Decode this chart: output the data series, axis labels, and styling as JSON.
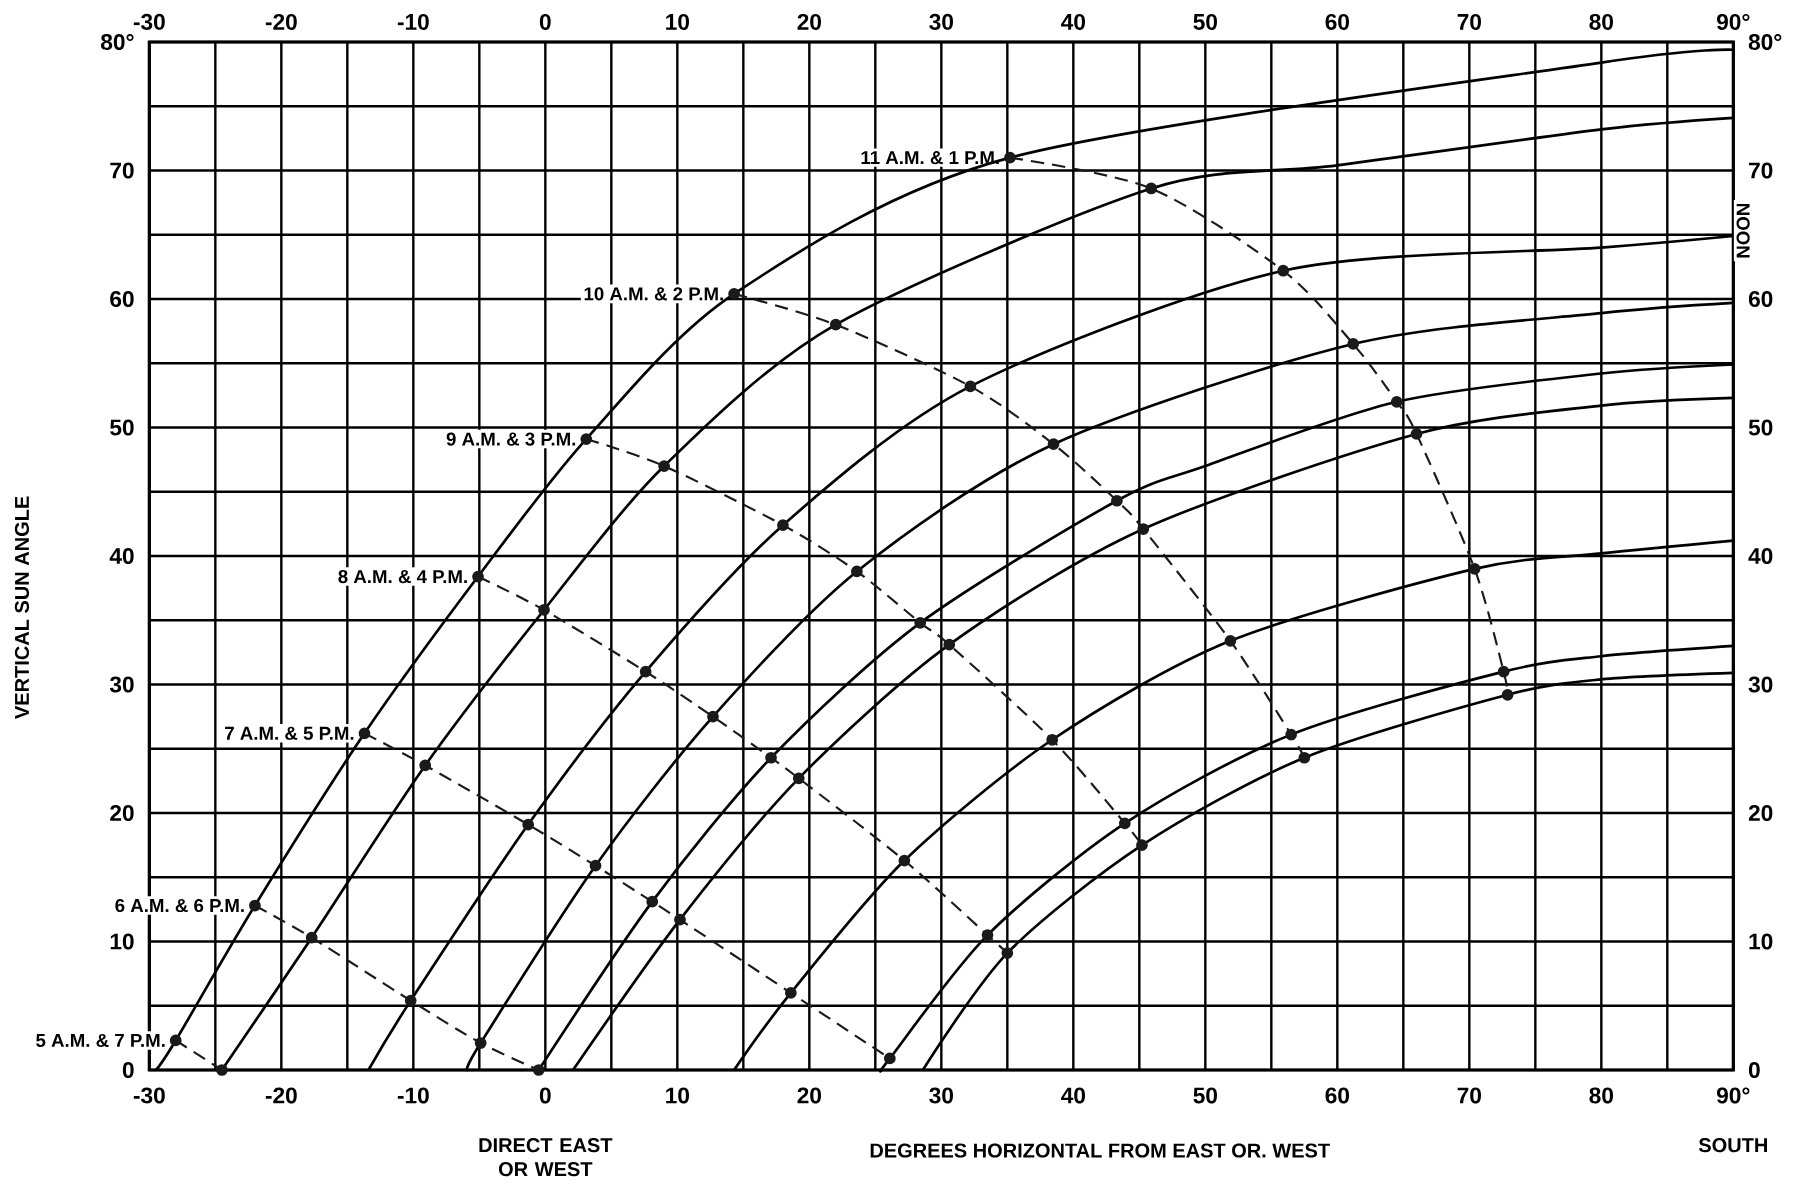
{
  "chart_data": {
    "type": "line",
    "xlabel": "DEGREES HORIZONTAL FROM EAST OR. WEST",
    "ylabel": "VERTICAL SUN ANGLE",
    "xlim": [
      -30,
      90
    ],
    "ylim": [
      0,
      80
    ],
    "x2lim": [
      -30,
      90
    ],
    "y2lim": [
      0,
      80
    ],
    "xticks": [
      -30,
      {
        "value": -25,
        "label": null
      },
      -20,
      {
        "value": -15,
        "label": null
      },
      -10,
      {
        "value": -5,
        "label": null
      },
      0,
      {
        "value": 5,
        "label": null
      },
      10,
      {
        "value": 15,
        "label": null
      },
      20,
      {
        "value": 25,
        "label": null
      },
      30,
      {
        "value": 35,
        "label": null
      },
      40,
      {
        "value": 45,
        "label": null
      },
      50,
      {
        "value": 55,
        "label": null
      },
      60,
      {
        "value": 65,
        "label": null
      },
      70,
      {
        "value": 75,
        "label": null
      },
      80,
      {
        "value": 85,
        "label": null
      },
      {
        "value": 90,
        "label": "90°"
      }
    ],
    "yticks": [
      0,
      {
        "value": 5,
        "label": null
      },
      10,
      {
        "value": 15,
        "label": null
      },
      20,
      {
        "value": 25,
        "label": null
      },
      30,
      {
        "value": 35,
        "label": null
      },
      40,
      {
        "value": 45,
        "label": null
      },
      50,
      {
        "value": 55,
        "label": null
      },
      60,
      {
        "value": 65,
        "label": null
      },
      70,
      {
        "value": 75,
        "label": null
      },
      {
        "value": 80,
        "label": "80°"
      }
    ],
    "x2ticks": [
      -30,
      -20,
      -10,
      0,
      10,
      20,
      30,
      40,
      50,
      60,
      70,
      80,
      {
        "value": 90,
        "label": "90°"
      }
    ],
    "y2ticks": [
      0,
      10,
      20,
      30,
      40,
      50,
      60,
      70,
      {
        "value": 80,
        "label": "80°"
      }
    ],
    "grid": true,
    "annotations": [
      "DIRECT EAST OR WEST",
      "SOUTH",
      {
        "text": "NOON",
        "x": 90,
        "y": 64.9
      }
    ],
    "series": [
      {
        "color": "#000000",
        "line_style": "solid",
        "x": [
          -29.5,
          -28.0,
          -22.0,
          -13.7,
          -5.1,
          3.1,
          14.3,
          35.2,
          80,
          90
        ],
        "values": [
          0,
          2.3,
          12.8,
          26.2,
          38.4,
          49.1,
          60.4,
          71.0,
          78.4,
          79.4
        ]
      },
      {
        "color": "#000000",
        "line_style": "solid",
        "x": [
          -24.5,
          -17.7,
          -9.1,
          -0.1,
          9.0,
          22.0,
          45.9,
          60,
          80,
          90
        ],
        "values": [
          0,
          10.3,
          23.7,
          35.8,
          47.0,
          58.0,
          68.6,
          70.4,
          73.2,
          74.1
        ]
      },
      {
        "color": "#000000",
        "line_style": "solid",
        "x": [
          -13.4,
          -10.2,
          -1.3,
          7.6,
          18.0,
          32.2,
          55.9,
          80,
          90
        ],
        "values": [
          0,
          5.4,
          19.1,
          31.0,
          42.4,
          53.2,
          62.2,
          64.0,
          64.9
        ]
      },
      {
        "color": "#000000",
        "line_style": "solid",
        "x": [
          -5.9,
          -4.9,
          3.8,
          12.7,
          23.6,
          38.5,
          61.2,
          80,
          90
        ],
        "values": [
          0,
          2.1,
          15.9,
          27.5,
          38.8,
          48.7,
          56.5,
          58.9,
          59.7
        ]
      },
      {
        "color": "#000000",
        "line_style": "solid",
        "x": [
          -0.5,
          8.1,
          17.1,
          28.4,
          43.3,
          50,
          64.5,
          80,
          90
        ],
        "values": [
          0,
          13.1,
          24.3,
          34.8,
          44.3,
          47.0,
          52.0,
          54.2,
          54.9
        ]
      },
      {
        "color": "#000000",
        "line_style": "solid",
        "x": [
          2.1,
          10.2,
          19.2,
          30.6,
          45.3,
          66.0,
          80,
          90
        ],
        "values": [
          0,
          11.7,
          22.7,
          33.1,
          42.1,
          49.5,
          51.7,
          52.3
        ]
      },
      {
        "color": "#000000",
        "line_style": "solid",
        "x": [
          14.3,
          18.6,
          27.2,
          38.4,
          51.9,
          70.4,
          80,
          90
        ],
        "values": [
          0,
          6.0,
          16.3,
          25.7,
          33.4,
          39.0,
          40.2,
          41.2
        ]
      },
      {
        "color": "#000000",
        "line_style": "solid",
        "x": [
          25.5,
          26.1,
          33.5,
          43.9,
          56.5,
          72.6,
          80,
          90
        ],
        "values": [
          0,
          0.9,
          10.5,
          19.2,
          26.1,
          31.0,
          32.2,
          33.0
        ]
      },
      {
        "color": "#000000",
        "line_style": "solid",
        "x": [
          28.6,
          35.0,
          45.2,
          57.5,
          72.9,
          80,
          90
        ],
        "values": [
          0,
          9.1,
          17.5,
          24.3,
          29.2,
          30.4,
          30.9
        ]
      },
      {
        "name": "5 A.M. & 7 P.M.",
        "color": "#1a1a1a",
        "marker": "circle",
        "line_style": "dashed",
        "x": [
          -28.0,
          -24.5
        ],
        "values": [
          2.3,
          0
        ]
      },
      {
        "name": "6 A.M. & 6 P.M.",
        "color": "#1a1a1a",
        "marker": "circle",
        "line_style": "dashed",
        "x": [
          -22.0,
          -17.7,
          -10.2,
          -4.9,
          -0.5
        ],
        "values": [
          12.8,
          10.3,
          5.4,
          2.1,
          0
        ]
      },
      {
        "name": "7 A.M. & 5 P.M.",
        "color": "#1a1a1a",
        "marker": "circle",
        "line_style": "dashed",
        "x": [
          -13.7,
          -9.1,
          -1.3,
          3.8,
          8.1,
          10.2,
          18.6,
          26.1
        ],
        "values": [
          26.2,
          23.7,
          19.1,
          15.9,
          13.1,
          11.7,
          6.0,
          0.9
        ]
      },
      {
        "name": "8 A.M. & 4 P.M.",
        "color": "#1a1a1a",
        "marker": "circle",
        "line_style": "dashed",
        "x": [
          -5.1,
          -0.1,
          7.6,
          12.7,
          17.1,
          19.2,
          27.2,
          33.5,
          35.0
        ],
        "values": [
          38.4,
          35.8,
          31.0,
          27.5,
          24.3,
          22.7,
          16.3,
          10.5,
          9.1
        ]
      },
      {
        "name": "9 A.M. & 3 P.M.",
        "color": "#1a1a1a",
        "marker": "circle",
        "line_style": "dashed",
        "x": [
          3.1,
          9.0,
          18.0,
          23.6,
          28.4,
          30.6,
          38.4,
          43.9,
          45.2
        ],
        "values": [
          49.1,
          47.0,
          42.4,
          38.8,
          34.8,
          33.1,
          25.7,
          19.2,
          17.5
        ]
      },
      {
        "name": "10 A.M. & 2 P.M.",
        "color": "#1a1a1a",
        "marker": "circle",
        "line_style": "dashed",
        "x": [
          14.3,
          22.0,
          32.2,
          38.5,
          43.3,
          45.3,
          51.9,
          56.5,
          57.5
        ],
        "values": [
          60.4,
          58.0,
          53.2,
          48.7,
          44.3,
          42.1,
          33.4,
          26.1,
          24.3
        ]
      },
      {
        "name": "11 A.M. & 1 P.M.",
        "color": "#1a1a1a",
        "marker": "circle",
        "line_style": "dashed",
        "x": [
          35.2,
          45.9,
          55.9,
          61.2,
          64.5,
          66.0,
          70.4,
          72.6,
          72.9
        ],
        "values": [
          71.0,
          68.6,
          62.2,
          56.5,
          52.0,
          49.5,
          39.0,
          31.0,
          29.2
        ]
      }
    ]
  }
}
